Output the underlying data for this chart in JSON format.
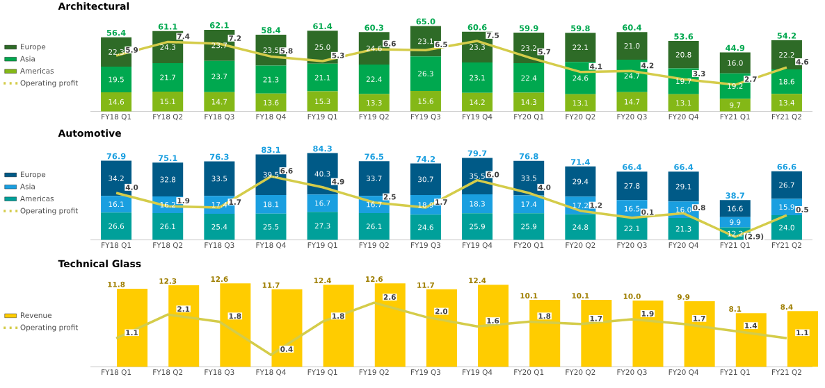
{
  "chart_data": [
    {
      "type": "bar",
      "title": "Architectural",
      "stacked": true,
      "data_labels": true,
      "legend": "left",
      "tick_labels": "x",
      "categories": [
        "FY18 Q1",
        "FY18 Q2",
        "FY18 Q3",
        "FY18 Q4",
        "FY19 Q1",
        "FY19 Q2",
        "FY19 Q3",
        "FY19 Q4",
        "FY20 Q1",
        "FY20 Q2",
        "FY20 Q3",
        "FY20 Q4",
        "FY21 Q1",
        "FY21 Q2"
      ],
      "series": [
        {
          "name": "Americas",
          "color": "#84b817",
          "values": [
            14.6,
            15.1,
            14.7,
            13.6,
            15.3,
            13.3,
            15.6,
            14.2,
            14.3,
            13.1,
            14.7,
            13.1,
            9.7,
            13.4
          ]
        },
        {
          "name": "Asia",
          "color": "#00a84f",
          "values": [
            19.5,
            21.7,
            23.7,
            21.3,
            21.1,
            22.4,
            26.3,
            23.1,
            22.4,
            24.6,
            24.7,
            19.7,
            19.2,
            18.6
          ]
        },
        {
          "name": "Europe",
          "color": "#2e6b27",
          "values": [
            22.3,
            24.3,
            23.7,
            23.5,
            25.0,
            24.6,
            23.1,
            23.3,
            23.2,
            22.1,
            21.0,
            20.8,
            16.0,
            22.2
          ],
          "value_labels": [
            "22.3",
            "24.3",
            "23.7",
            "23.5",
            "25.0",
            "24.6",
            "23.1",
            "23.3",
            "23.2",
            "22.1",
            "21.0",
            "20.8",
            "16.0",
            "22.2"
          ]
        },
        {
          "name": "Operating profit",
          "type": "line",
          "axis": "y2",
          "color": "#d4cc4a",
          "values": [
            5.9,
            7.4,
            7.2,
            5.8,
            5.3,
            6.6,
            6.5,
            7.5,
            5.7,
            4.1,
            4.2,
            3.3,
            2.7,
            4.6
          ]
        }
      ],
      "totals": [
        "56.4",
        "61.1",
        "62.1",
        "58.4",
        "61.4",
        "60.3",
        "65.0",
        "60.6",
        "59.9",
        "59.8",
        "60.4",
        "53.6",
        "44.9",
        "54.2"
      ]
    },
    {
      "type": "bar",
      "title": "Automotive",
      "stacked": true,
      "data_labels": true,
      "legend": "left",
      "tick_labels": "x",
      "categories": [
        "FY18 Q1",
        "FY18 Q2",
        "FY18 Q3",
        "FY18 Q4",
        "FY19 Q1",
        "FY19 Q2",
        "FY19 Q3",
        "FY19 Q4",
        "FY20 Q1",
        "FY20 Q2",
        "FY20 Q3",
        "FY20 Q4",
        "FY21 Q1",
        "FY21 Q2"
      ],
      "series": [
        {
          "name": "Americas",
          "color": "#00a09a",
          "values": [
            26.6,
            26.1,
            25.4,
            25.5,
            27.3,
            26.1,
            24.6,
            25.9,
            25.9,
            24.8,
            22.1,
            21.3,
            12.2,
            24.0
          ],
          "value_labels": [
            "26.6",
            "26.1",
            "25.4",
            "25.5",
            "27.3",
            "26.1",
            "24.6",
            "25.9",
            "25.9",
            "24.8",
            "22.1",
            "21.3",
            "12.2",
            "24.0"
          ]
        },
        {
          "name": "Asia",
          "color": "#1a9fe0",
          "values": [
            16.1,
            16.2,
            17.4,
            18.1,
            16.7,
            16.7,
            18.9,
            18.3,
            17.4,
            17.2,
            16.5,
            16.0,
            9.9,
            15.9
          ],
          "value_labels": [
            "16.1",
            "16.2",
            "17.4",
            "18.1",
            "16.7",
            "16.7",
            "18.9",
            "18.3",
            "17.4",
            "17.2",
            "16.5",
            "16.0",
            "9.9",
            "15.9"
          ]
        },
        {
          "name": "Europe",
          "color": "#005a87",
          "values": [
            34.2,
            32.8,
            33.5,
            39.5,
            40.3,
            33.7,
            30.7,
            35.5,
            33.5,
            29.4,
            27.8,
            29.1,
            16.6,
            26.7
          ]
        },
        {
          "name": "Operating profit",
          "type": "line",
          "axis": "y2",
          "color": "#d4cc4a",
          "values": [
            4.0,
            1.9,
            1.7,
            6.6,
            4.9,
            2.5,
            1.7,
            6.0,
            4.0,
            1.2,
            0.1,
            0.8,
            -2.9,
            0.5
          ],
          "value_labels": [
            "4.0",
            "1.9",
            "1.7",
            "6.6",
            "4.9",
            "2.5",
            "1.7",
            "6.0",
            "4.0",
            "1.2",
            "0.1",
            "0.8",
            "(2.9)",
            "0.5"
          ]
        }
      ],
      "totals": [
        "76.9",
        "75.1",
        "76.3",
        "83.1",
        "84.3",
        "76.5",
        "74.2",
        "79.7",
        "76.8",
        "71.4",
        "66.4",
        "66.4",
        "38.7",
        "66.6"
      ]
    },
    {
      "type": "bar",
      "title": "Technical Glass",
      "data_labels": true,
      "legend": "left",
      "tick_labels": "x",
      "categories": [
        "FY18 Q1",
        "FY18 Q2",
        "FY18 Q3",
        "FY18 Q4",
        "FY19 Q1",
        "FY19 Q2",
        "FY19 Q3",
        "FY19 Q4",
        "FY20 Q1",
        "FY20 Q2",
        "FY20 Q3",
        "FY20 Q4",
        "FY21 Q1",
        "FY21 Q2"
      ],
      "series": [
        {
          "name": "Revenue",
          "color": "#ffcc00",
          "values": [
            11.8,
            12.3,
            12.6,
            11.7,
            12.4,
            12.6,
            11.7,
            12.4,
            10.1,
            10.1,
            10.0,
            9.9,
            8.1,
            8.4
          ],
          "value_labels": [
            "11.8",
            "12.3",
            "12.6",
            "11.7",
            "12.4",
            "12.6",
            "11.7",
            "12.4",
            "10.1",
            "10.1",
            "10.0",
            "9.9",
            "8.1",
            "8.4"
          ]
        },
        {
          "name": "Operating profit",
          "type": "line",
          "axis": "y2",
          "color": "#d4cc4a",
          "values": [
            1.1,
            2.1,
            1.8,
            0.4,
            1.8,
            2.6,
            2.0,
            1.6,
            1.8,
            1.7,
            1.9,
            1.7,
            1.4,
            1.1
          ],
          "value_labels": [
            "1.1",
            "2.1",
            "1.8",
            "0.4",
            "1.8",
            "2.6",
            "2.0",
            "1.6",
            "1.8",
            "1.7",
            "1.9",
            "1.7",
            "1.4",
            "1.1"
          ]
        }
      ]
    }
  ]
}
